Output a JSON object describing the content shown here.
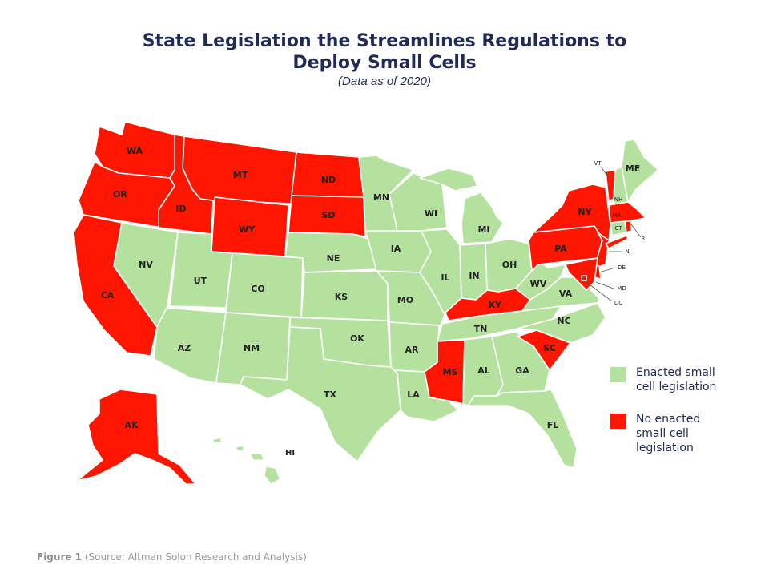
{
  "title": {
    "line1": "State Legislation the Streamlines Regulations to",
    "line2": "Deploy Small Cells",
    "subtitle": "(Data as of 2020)"
  },
  "colors": {
    "enacted": "#b5e19f",
    "not_enacted": "#ff1500",
    "state_border": "#ffffff",
    "title": "#1f2a56",
    "caption": "#9a9a9a"
  },
  "legend": {
    "enacted": "Enacted small\ncell legislation",
    "not_enacted": "No enacted\nsmall cell\nlegislation"
  },
  "states": [
    {
      "code": "WA",
      "status": "not_enacted"
    },
    {
      "code": "OR",
      "status": "not_enacted"
    },
    {
      "code": "CA",
      "status": "not_enacted"
    },
    {
      "code": "ID",
      "status": "not_enacted"
    },
    {
      "code": "MT",
      "status": "not_enacted"
    },
    {
      "code": "WY",
      "status": "not_enacted"
    },
    {
      "code": "ND",
      "status": "not_enacted"
    },
    {
      "code": "SD",
      "status": "not_enacted"
    },
    {
      "code": "NV",
      "status": "enacted"
    },
    {
      "code": "UT",
      "status": "enacted"
    },
    {
      "code": "AZ",
      "status": "enacted"
    },
    {
      "code": "CO",
      "status": "enacted"
    },
    {
      "code": "NM",
      "status": "enacted"
    },
    {
      "code": "NE",
      "status": "enacted"
    },
    {
      "code": "KS",
      "status": "enacted"
    },
    {
      "code": "OK",
      "status": "enacted"
    },
    {
      "code": "TX",
      "status": "enacted"
    },
    {
      "code": "MN",
      "status": "enacted"
    },
    {
      "code": "IA",
      "status": "enacted"
    },
    {
      "code": "MO",
      "status": "enacted"
    },
    {
      "code": "AR",
      "status": "enacted"
    },
    {
      "code": "LA",
      "status": "enacted"
    },
    {
      "code": "WI",
      "status": "enacted"
    },
    {
      "code": "IL",
      "status": "enacted"
    },
    {
      "code": "MI",
      "status": "enacted"
    },
    {
      "code": "IN",
      "status": "enacted"
    },
    {
      "code": "OH",
      "status": "enacted"
    },
    {
      "code": "KY",
      "status": "not_enacted"
    },
    {
      "code": "TN",
      "status": "enacted"
    },
    {
      "code": "MS",
      "status": "not_enacted"
    },
    {
      "code": "AL",
      "status": "enacted"
    },
    {
      "code": "GA",
      "status": "enacted"
    },
    {
      "code": "FL",
      "status": "enacted"
    },
    {
      "code": "SC",
      "status": "not_enacted"
    },
    {
      "code": "NC",
      "status": "enacted"
    },
    {
      "code": "VA",
      "status": "enacted"
    },
    {
      "code": "WV",
      "status": "enacted"
    },
    {
      "code": "PA",
      "status": "not_enacted"
    },
    {
      "code": "NY",
      "status": "not_enacted"
    },
    {
      "code": "NJ",
      "status": "not_enacted"
    },
    {
      "code": "DE",
      "status": "not_enacted"
    },
    {
      "code": "MD",
      "status": "not_enacted"
    },
    {
      "code": "DC",
      "status": "not_enacted"
    },
    {
      "code": "VT",
      "status": "not_enacted"
    },
    {
      "code": "NH",
      "status": "enacted"
    },
    {
      "code": "ME",
      "status": "enacted"
    },
    {
      "code": "MA",
      "status": "not_enacted"
    },
    {
      "code": "CT",
      "status": "enacted"
    },
    {
      "code": "RI",
      "status": "not_enacted"
    },
    {
      "code": "AK",
      "status": "not_enacted"
    },
    {
      "code": "HI",
      "status": "enacted"
    }
  ],
  "caption": {
    "figure": "Figure 1",
    "source": "(Source: Altman Solon Research and Analysis)"
  }
}
